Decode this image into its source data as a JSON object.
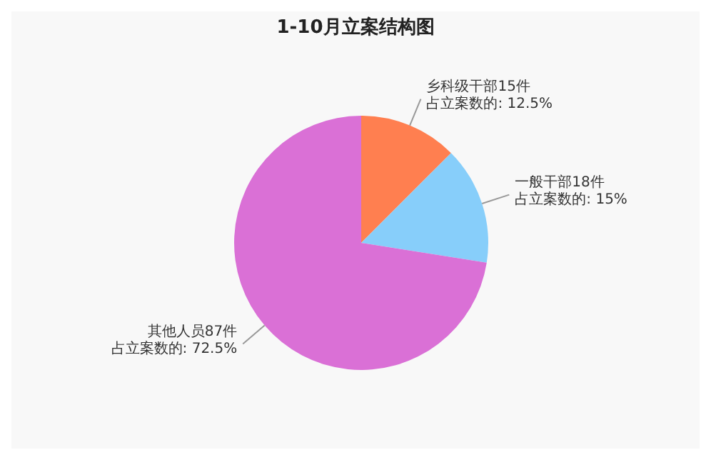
{
  "chart_data": {
    "type": "pie",
    "title": "1-10月立案结构图",
    "categories": [
      "乡科级干部",
      "一般干部",
      "其他人员"
    ],
    "values": [
      15,
      18,
      87
    ],
    "colors": [
      "#ff7f50",
      "#87cefa",
      "#da70d6"
    ],
    "value_labels": [
      "15件",
      "18件",
      "87件"
    ],
    "annotations": [
      "占立案数的: 12.5%",
      "占立案数的: 15%",
      "占立案数的: 72.5%"
    ],
    "legend": false
  }
}
